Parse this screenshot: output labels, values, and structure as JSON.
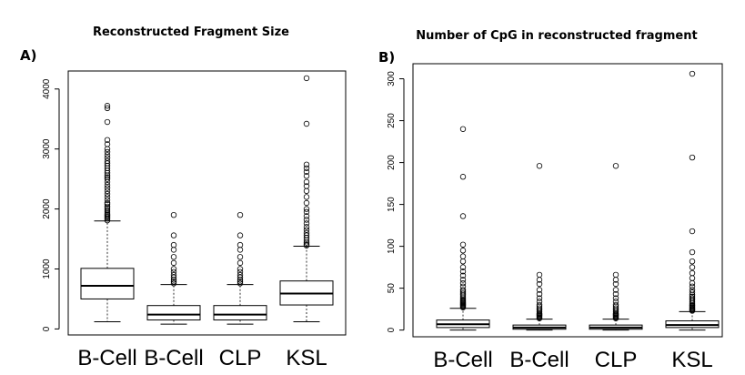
{
  "chart_data": [
    {
      "type": "box",
      "panel_label": "A)",
      "title": "Reconstructed Fragment Size",
      "xlabel": "",
      "ylabel": "",
      "categories": [
        "B-Cell",
        "B-Cell",
        "CLP",
        "KSL"
      ],
      "yticks": [
        "0",
        "1000",
        "2000",
        "3000",
        "4000"
      ],
      "ylim": [
        -100,
        4300
      ],
      "grid": false,
      "boxes": [
        {
          "whisker_low": 120,
          "q1": 500,
          "median": 720,
          "q3": 1010,
          "whisker_high": 1800,
          "outliers": [
            1810,
            1840,
            1860,
            1880,
            1900,
            1920,
            1950,
            1980,
            2010,
            2040,
            2080,
            2100,
            2150,
            2200,
            2250,
            2300,
            2350,
            2400,
            2450,
            2500,
            2530,
            2560,
            2600,
            2640,
            2680,
            2720,
            2760,
            2800,
            2850,
            2900,
            2950,
            3000,
            3080,
            3150,
            3450,
            3680,
            3720
          ]
        },
        {
          "whisker_low": 80,
          "q1": 150,
          "median": 240,
          "q3": 390,
          "whisker_high": 740,
          "outliers": [
            760,
            790,
            820,
            860,
            900,
            950,
            1000,
            1100,
            1200,
            1320,
            1400,
            1560,
            1900
          ]
        },
        {
          "whisker_low": 80,
          "q1": 150,
          "median": 240,
          "q3": 390,
          "whisker_high": 740,
          "outliers": [
            760,
            790,
            820,
            860,
            900,
            950,
            1000,
            1100,
            1200,
            1320,
            1400,
            1560,
            1900
          ]
        },
        {
          "whisker_low": 120,
          "q1": 400,
          "median": 590,
          "q3": 800,
          "whisker_high": 1380,
          "outliers": [
            1390,
            1410,
            1440,
            1480,
            1520,
            1560,
            1600,
            1650,
            1700,
            1760,
            1820,
            1880,
            1950,
            2000,
            2100,
            2200,
            2300,
            2380,
            2450,
            2550,
            2620,
            2680,
            2740,
            3420,
            4180
          ]
        }
      ]
    },
    {
      "type": "box",
      "panel_label": "B)",
      "title": "Number of CpG in reconstructed fragment",
      "xlabel": "",
      "ylabel": "",
      "categories": [
        "B-Cell",
        "B-Cell",
        "CLP",
        "KSL"
      ],
      "yticks": [
        "0",
        "50",
        "100",
        "150",
        "200",
        "250",
        "300"
      ],
      "ylim": [
        -8,
        318
      ],
      "grid": false,
      "boxes": [
        {
          "whisker_low": 0,
          "q1": 3,
          "median": 7,
          "q3": 12,
          "whisker_high": 26,
          "outliers": [
            27,
            28,
            29,
            30,
            31,
            32,
            33,
            34,
            35,
            36,
            38,
            40,
            42,
            44,
            46,
            48,
            52,
            56,
            60,
            65,
            70,
            75,
            82,
            88,
            95,
            102,
            136,
            183,
            240
          ]
        },
        {
          "whisker_low": 0,
          "q1": 1,
          "median": 3,
          "q3": 6,
          "whisker_high": 13,
          "outliers": [
            14,
            15,
            16,
            17,
            18,
            19,
            20,
            22,
            24,
            26,
            28,
            30,
            34,
            38,
            43,
            48,
            55,
            60,
            66,
            196
          ]
        },
        {
          "whisker_low": 0,
          "q1": 1,
          "median": 3,
          "q3": 6,
          "whisker_high": 13,
          "outliers": [
            14,
            15,
            16,
            17,
            18,
            19,
            20,
            22,
            24,
            26,
            28,
            30,
            34,
            38,
            43,
            48,
            55,
            60,
            66,
            196
          ]
        },
        {
          "whisker_low": 0,
          "q1": 3,
          "median": 6,
          "q3": 11,
          "whisker_high": 22,
          "outliers": [
            23,
            24,
            25,
            26,
            27,
            28,
            29,
            30,
            32,
            34,
            36,
            38,
            40,
            42,
            45,
            48,
            52,
            56,
            62,
            68,
            75,
            82,
            93,
            118,
            206,
            306
          ]
        }
      ]
    }
  ]
}
